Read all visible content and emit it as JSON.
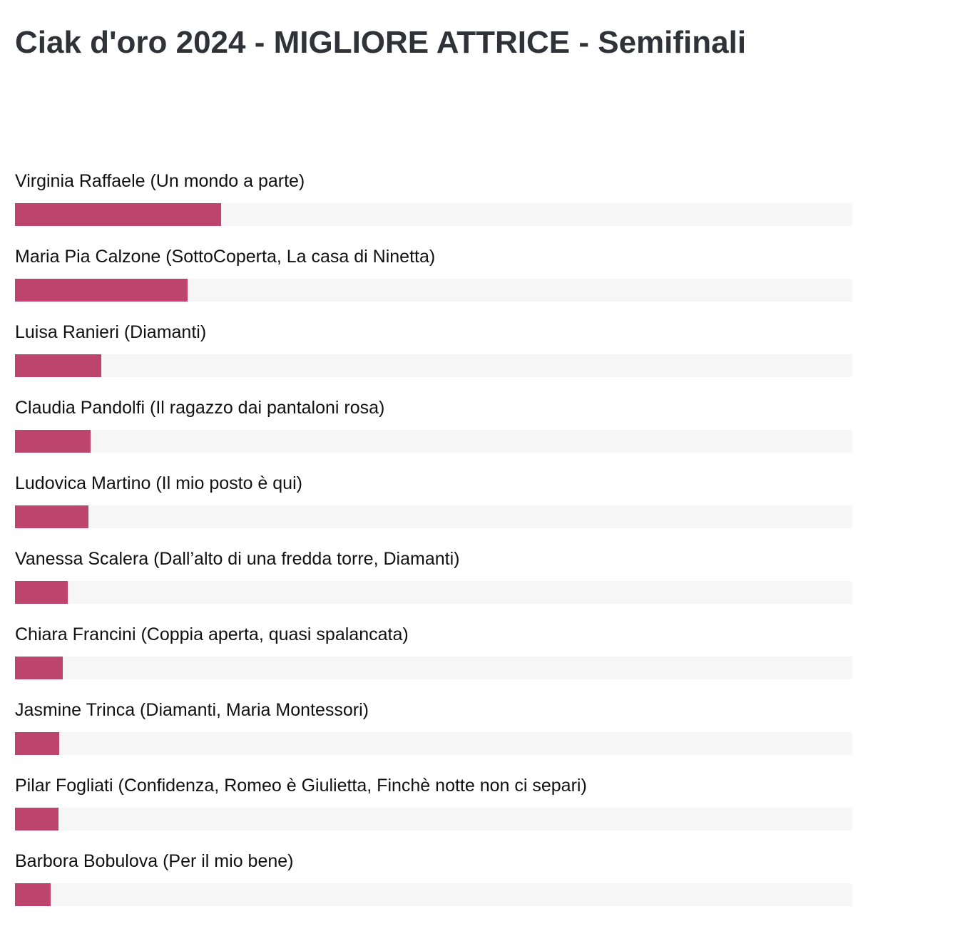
{
  "title": "Ciak d'oro 2024 - MIGLIORE ATTRICE - Semifinali",
  "colors": {
    "bar": "#bd446c",
    "track": "#f5f6f5",
    "title": "#2f3338"
  },
  "chart_data": {
    "type": "bar",
    "orientation": "horizontal",
    "title": "Ciak d'oro 2024 - MIGLIORE ATTRICE - Semifinali",
    "xlabel": "",
    "ylabel": "",
    "xlim": [
      0,
      100
    ],
    "grid": false,
    "categories": [
      "Virginia Raffaele (Un mondo a parte)",
      "Maria Pia Calzone (SottoCoperta, La casa di Ninetta)",
      "Luisa Ranieri (Diamanti)",
      "Claudia Pandolfi (Il ragazzo dai pantaloni rosa)",
      "Ludovica Martino (Il mio posto è qui)",
      "Vanessa Scalera (Dall’alto di una fredda torre, Diamanti)",
      "Chiara Francini (Coppia aperta, quasi spalancata)",
      "Jasmine Trinca (Diamanti, Maria Montessori)",
      "Pilar Fogliati (Confidenza, Romeo è Giulietta, Finchè notte non ci separi)",
      "Barbora Bobulova (Per il mio bene)"
    ],
    "values": [
      24.6,
      20.6,
      10.3,
      9.0,
      8.8,
      6.3,
      5.7,
      5.3,
      5.2,
      4.3
    ]
  }
}
